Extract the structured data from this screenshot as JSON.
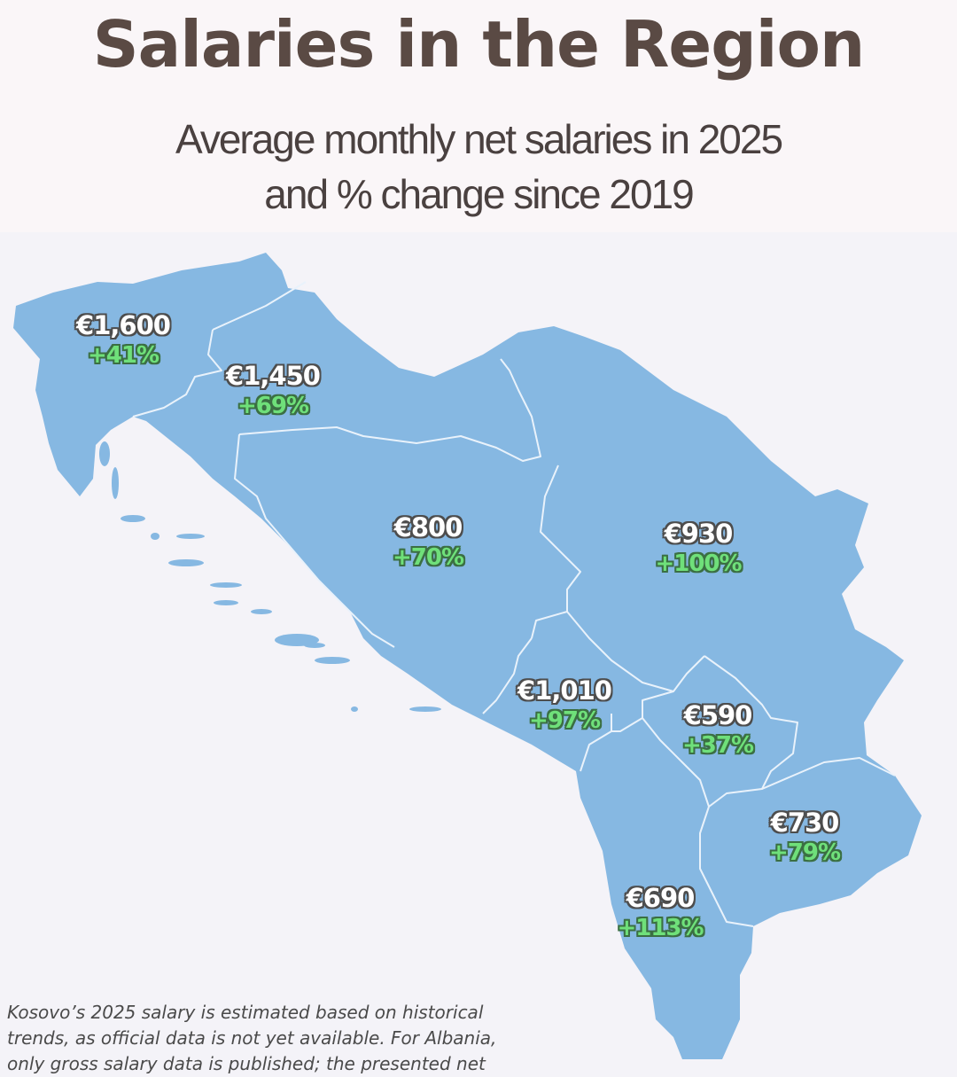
{
  "header": {
    "title": "Salaries in the Region",
    "subtitle_line1": "Average monthly net salaries in 2025",
    "subtitle_line2": "and % change since 2019"
  },
  "colors": {
    "land": "#86b8e2",
    "border": "#e9f2fb",
    "salary_text": "#ffffff",
    "change_text": "#6fe07a"
  },
  "regions": [
    {
      "salary": "€1,600",
      "change": "+41%"
    },
    {
      "salary": "€1,450",
      "change": "+69%"
    },
    {
      "salary": "€800",
      "change": "+70%"
    },
    {
      "salary": "€930",
      "change": "+100%"
    },
    {
      "salary": "€1,010",
      "change": "+97%"
    },
    {
      "salary": "€590",
      "change": "+37%"
    },
    {
      "salary": "€730",
      "change": "+79%"
    },
    {
      "salary": "€690",
      "change": "+113%"
    }
  ],
  "footnote": "Kosovo’s 2025 salary is estimated based on historical trends, as official data is not yet available. For Albania, only gross salary data is published; the presented net"
}
